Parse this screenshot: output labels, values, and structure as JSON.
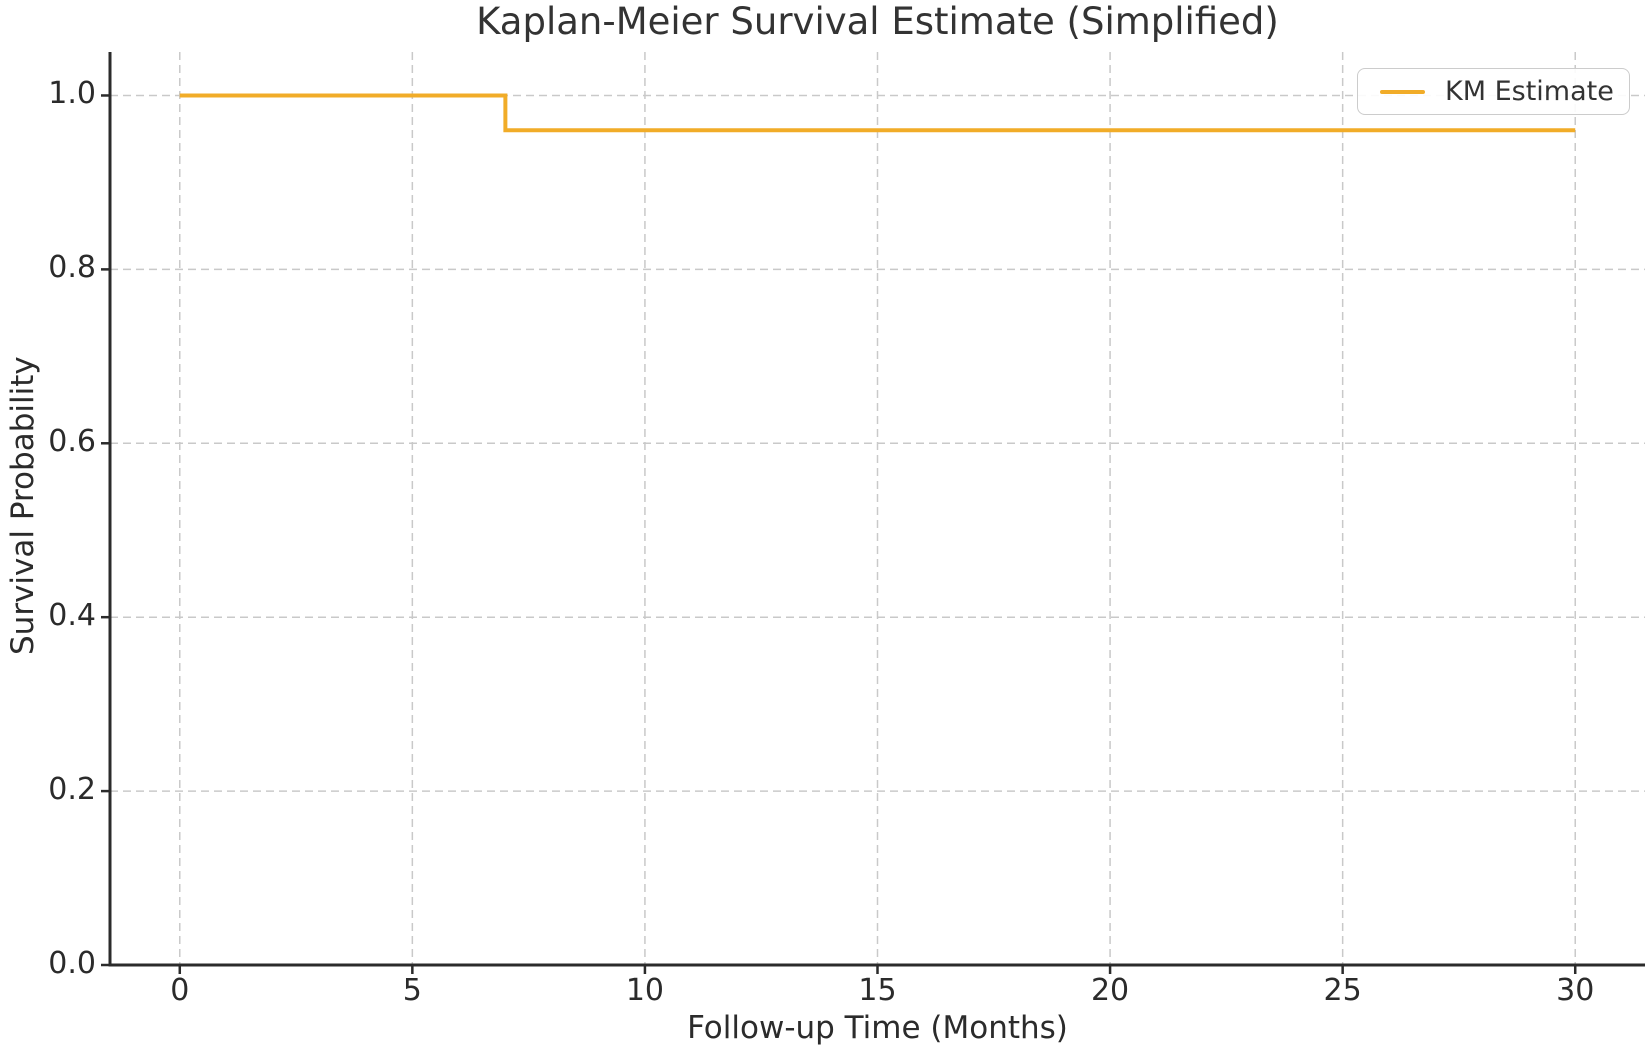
{
  "chart_data": {
    "type": "line",
    "step": "post",
    "title": "Kaplan-Meier Survival Estimate (Simplified)",
    "xlabel": "Follow-up Time (Months)",
    "ylabel": "Survival Probability",
    "xlim": [
      -1.5,
      31.5
    ],
    "ylim": [
      0,
      1.05
    ],
    "x_ticks": [
      0,
      5,
      10,
      15,
      20,
      25,
      30
    ],
    "x_tick_labels": [
      "0",
      "5",
      "10",
      "15",
      "20",
      "25",
      "30"
    ],
    "y_ticks": [
      0,
      0.2,
      0.4,
      0.6,
      0.8,
      1.0
    ],
    "y_tick_labels": [
      "0.0",
      "0.2",
      "0.4",
      "0.6",
      "0.8",
      "1.0"
    ],
    "grid": {
      "visible": true,
      "linestyle": "dashed",
      "color": "#c9c9c9"
    },
    "legend": {
      "position": "upper right",
      "label": "KM Estimate"
    },
    "series": [
      {
        "name": "KM Estimate",
        "color": "#F1AC28",
        "linewidth": 4,
        "x": [
          0,
          7,
          30
        ],
        "y": [
          1.0,
          0.96,
          0.96
        ]
      }
    ],
    "colors": {
      "line": "#F1AC28",
      "spine": "#2b2b2b",
      "grid": "#c9c9c9",
      "text": "#2b2b2b",
      "legend_border": "#cccccc",
      "background": "#ffffff"
    }
  }
}
